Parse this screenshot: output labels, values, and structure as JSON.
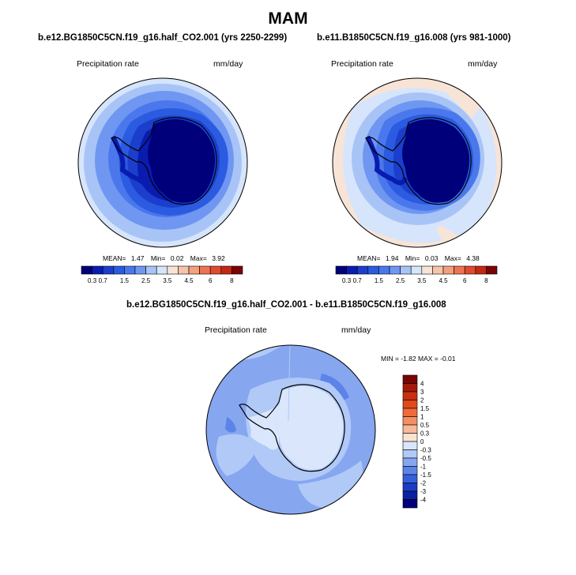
{
  "figure": {
    "title": "MAM"
  },
  "panels": [
    {
      "title": "b.e12.BG1850C5CN.f19_g16.half_CO2.001 (yrs 2250-2299)",
      "left_label": "Precipitation rate",
      "right_label": "mm/day",
      "stats": {
        "mean_label": "MEAN=",
        "mean": "1.47",
        "min_label": "Min=",
        "min": "0.02",
        "max_label": "Max=",
        "max": "3.92"
      }
    },
    {
      "title": "b.e11.B1850C5CN.f19_g16.008 (yrs 981-1000)",
      "left_label": "Precipitation rate",
      "right_label": "mm/day",
      "stats": {
        "mean_label": "MEAN=",
        "mean": "1.94",
        "min_label": "Min=",
        "min": "0.03",
        "max_label": "Max=",
        "max": "4.38"
      }
    },
    {
      "title": "b.e12.BG1850C5CN.f19_g16.half_CO2.001 - b.e11.B1850C5CN.f19_g16.008",
      "left_label": "Precipitation rate",
      "right_label": "mm/day",
      "minmax_text": "MIN =  -1.82 MAX =  -0.01"
    }
  ],
  "chart_data": [
    {
      "type": "heatmap",
      "projection": "south polar stereographic",
      "title": "b.e12.BG1850C5CN.f19_g16.half_CO2.001 (yrs 2250-2299)",
      "variable": "Precipitation rate",
      "units": "mm/day",
      "mean": 1.47,
      "min": 0.02,
      "max": 3.92,
      "colorbar": {
        "orientation": "horizontal",
        "levels": [
          "0.3",
          "0.7",
          "1",
          "1.5",
          "2",
          "2.5",
          "3",
          "3.5",
          "4",
          "4.5",
          "5",
          "6",
          "7",
          "8"
        ],
        "tick_labels": [
          "0.3",
          "0.7",
          "1.5",
          "2.5",
          "3.5",
          "4.5",
          "6",
          "8"
        ],
        "colors": [
          "#00007a",
          "#0a1cb0",
          "#1b3fcc",
          "#2a5be0",
          "#4a78ec",
          "#6f97f2",
          "#a8c4f7",
          "#d6e5fb",
          "#f7e4d6",
          "#f6c4ab",
          "#f3a07d",
          "#ee7352",
          "#e04a2f",
          "#c22814",
          "#7a0403"
        ]
      }
    },
    {
      "type": "heatmap",
      "projection": "south polar stereographic",
      "title": "b.e11.B1850C5CN.f19_g16.008 (yrs 981-1000)",
      "variable": "Precipitation rate",
      "units": "mm/day",
      "mean": 1.94,
      "min": 0.03,
      "max": 4.38,
      "colorbar": {
        "orientation": "horizontal",
        "levels": [
          "0.3",
          "0.7",
          "1",
          "1.5",
          "2",
          "2.5",
          "3",
          "3.5",
          "4",
          "4.5",
          "5",
          "6",
          "7",
          "8"
        ],
        "tick_labels": [
          "0.3",
          "0.7",
          "1.5",
          "2.5",
          "3.5",
          "4.5",
          "6",
          "8"
        ],
        "colors": [
          "#00007a",
          "#0a1cb0",
          "#1b3fcc",
          "#2a5be0",
          "#4a78ec",
          "#6f97f2",
          "#a8c4f7",
          "#d6e5fb",
          "#f7e4d6",
          "#f6c4ab",
          "#f3a07d",
          "#ee7352",
          "#e04a2f",
          "#c22814",
          "#7a0403"
        ]
      }
    },
    {
      "type": "heatmap",
      "projection": "south polar stereographic",
      "title": "b.e12.BG1850C5CN.f19_g16.half_CO2.001 - b.e11.B1850C5CN.f19_g16.008",
      "variable": "Precipitation rate",
      "units": "mm/day",
      "min": -1.82,
      "max": -0.01,
      "colorbar": {
        "orientation": "vertical",
        "tick_labels": [
          "4",
          "3",
          "2",
          "1.5",
          "1",
          "0.5",
          "0.3",
          "0",
          "-0.3",
          "-0.5",
          "-1",
          "-1.5",
          "-2",
          "-3",
          "-4"
        ],
        "colors": [
          "#7a0403",
          "#a41a08",
          "#c9300f",
          "#e2481b",
          "#ef6a3c",
          "#f48f64",
          "#f7b999",
          "#fbe3d2",
          "#d9e6fb",
          "#b0c9f7",
          "#86a6f0",
          "#5b83e8",
          "#3560dc",
          "#1a3dc4",
          "#0b22a0",
          "#00007a"
        ]
      }
    }
  ]
}
